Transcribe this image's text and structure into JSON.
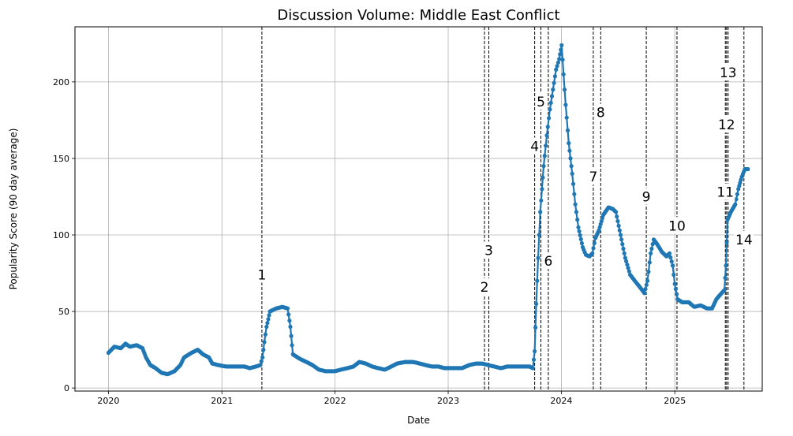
{
  "chart_data": {
    "type": "scatter",
    "title": "Discussion Volume: Middle East Conflict",
    "xlabel": "Date",
    "ylabel": "Popularity Score (90 day average)",
    "xlim": [
      "2019-09-15",
      "2025-10-10"
    ],
    "ylim": [
      -2,
      236
    ],
    "grid": true,
    "series_color": "#1f77b4",
    "x_ticks": [
      {
        "date": "2020-01-01",
        "label": "2020"
      },
      {
        "date": "2021-01-01",
        "label": "2021"
      },
      {
        "date": "2022-01-01",
        "label": "2022"
      },
      {
        "date": "2023-01-01",
        "label": "2023"
      },
      {
        "date": "2024-01-01",
        "label": "2024"
      },
      {
        "date": "2025-01-01",
        "label": "2025"
      }
    ],
    "y_ticks": [
      0,
      50,
      100,
      150,
      200
    ],
    "series": [
      {
        "points": [
          [
            "2020-01-01",
            23
          ],
          [
            "2020-01-20",
            27
          ],
          [
            "2020-02-10",
            26
          ],
          [
            "2020-02-25",
            29
          ],
          [
            "2020-03-10",
            27
          ],
          [
            "2020-04-01",
            28
          ],
          [
            "2020-04-20",
            26
          ],
          [
            "2020-05-01",
            20
          ],
          [
            "2020-05-15",
            15
          ],
          [
            "2020-06-01",
            13
          ],
          [
            "2020-06-20",
            10
          ],
          [
            "2020-07-10",
            9
          ],
          [
            "2020-08-01",
            11
          ],
          [
            "2020-08-20",
            15
          ],
          [
            "2020-09-01",
            20
          ],
          [
            "2020-09-25",
            23
          ],
          [
            "2020-10-15",
            25
          ],
          [
            "2020-11-01",
            22
          ],
          [
            "2020-11-20",
            20
          ],
          [
            "2020-12-01",
            16
          ],
          [
            "2020-12-20",
            15
          ],
          [
            "2021-01-15",
            14
          ],
          [
            "2021-02-15",
            14
          ],
          [
            "2021-03-15",
            14
          ],
          [
            "2021-04-01",
            13
          ],
          [
            "2021-04-20",
            14
          ],
          [
            "2021-05-05",
            15
          ],
          [
            "2021-05-12",
            20
          ],
          [
            "2021-05-18",
            30
          ],
          [
            "2021-05-25",
            40
          ],
          [
            "2021-06-05",
            50
          ],
          [
            "2021-06-25",
            52
          ],
          [
            "2021-07-15",
            53
          ],
          [
            "2021-08-01",
            52
          ],
          [
            "2021-08-10",
            40
          ],
          [
            "2021-08-18",
            22
          ],
          [
            "2021-09-10",
            19
          ],
          [
            "2021-10-01",
            17
          ],
          [
            "2021-10-20",
            15
          ],
          [
            "2021-11-10",
            12
          ],
          [
            "2021-12-01",
            11
          ],
          [
            "2022-01-01",
            11
          ],
          [
            "2022-01-20",
            12
          ],
          [
            "2022-02-10",
            13
          ],
          [
            "2022-03-01",
            14
          ],
          [
            "2022-03-20",
            17
          ],
          [
            "2022-04-10",
            16
          ],
          [
            "2022-05-01",
            14
          ],
          [
            "2022-05-20",
            13
          ],
          [
            "2022-06-10",
            12
          ],
          [
            "2022-07-01",
            14
          ],
          [
            "2022-07-20",
            16
          ],
          [
            "2022-08-15",
            17
          ],
          [
            "2022-09-10",
            17
          ],
          [
            "2022-10-01",
            16
          ],
          [
            "2022-10-20",
            15
          ],
          [
            "2022-11-10",
            14
          ],
          [
            "2022-12-01",
            14
          ],
          [
            "2022-12-20",
            13
          ],
          [
            "2023-01-15",
            13
          ],
          [
            "2023-02-15",
            13
          ],
          [
            "2023-03-10",
            15
          ],
          [
            "2023-04-01",
            16
          ],
          [
            "2023-04-20",
            16
          ],
          [
            "2023-05-10",
            15
          ],
          [
            "2023-05-30",
            14
          ],
          [
            "2023-06-20",
            13
          ],
          [
            "2023-07-10",
            14
          ],
          [
            "2023-08-01",
            14
          ],
          [
            "2023-08-25",
            14
          ],
          [
            "2023-09-20",
            14
          ],
          [
            "2023-10-01",
            13
          ],
          [
            "2023-10-07",
            24
          ],
          [
            "2023-10-12",
            55
          ],
          [
            "2023-10-18",
            85
          ],
          [
            "2023-10-25",
            115
          ],
          [
            "2023-11-05",
            145
          ],
          [
            "2023-11-15",
            165
          ],
          [
            "2023-11-25",
            182
          ],
          [
            "2023-12-05",
            195
          ],
          [
            "2023-12-15",
            208
          ],
          [
            "2023-12-25",
            215
          ],
          [
            "2024-01-02",
            224
          ],
          [
            "2024-01-08",
            205
          ],
          [
            "2024-01-15",
            185
          ],
          [
            "2024-01-25",
            160
          ],
          [
            "2024-02-05",
            140
          ],
          [
            "2024-02-15",
            120
          ],
          [
            "2024-02-25",
            105
          ],
          [
            "2024-03-10",
            92
          ],
          [
            "2024-03-20",
            87
          ],
          [
            "2024-04-01",
            86
          ],
          [
            "2024-04-10",
            88
          ],
          [
            "2024-04-20",
            98
          ],
          [
            "2024-05-01",
            103
          ],
          [
            "2024-05-15",
            113
          ],
          [
            "2024-06-01",
            118
          ],
          [
            "2024-06-15",
            117
          ],
          [
            "2024-06-25",
            115
          ],
          [
            "2024-07-10",
            100
          ],
          [
            "2024-07-25",
            85
          ],
          [
            "2024-08-10",
            74
          ],
          [
            "2024-08-25",
            70
          ],
          [
            "2024-09-10",
            66
          ],
          [
            "2024-09-25",
            62
          ],
          [
            "2024-10-05",
            70
          ],
          [
            "2024-10-15",
            88
          ],
          [
            "2024-10-25",
            97
          ],
          [
            "2024-11-05",
            94
          ],
          [
            "2024-11-20",
            89
          ],
          [
            "2024-12-05",
            86
          ],
          [
            "2024-12-15",
            88
          ],
          [
            "2024-12-25",
            80
          ],
          [
            "2025-01-01",
            68
          ],
          [
            "2025-01-10",
            58
          ],
          [
            "2025-01-25",
            56
          ],
          [
            "2025-02-15",
            56
          ],
          [
            "2025-03-05",
            53
          ],
          [
            "2025-03-25",
            54
          ],
          [
            "2025-04-15",
            52
          ],
          [
            "2025-05-01",
            52
          ],
          [
            "2025-05-15",
            58
          ],
          [
            "2025-06-01",
            62
          ],
          [
            "2025-06-10",
            64
          ],
          [
            "2025-06-15",
            80
          ],
          [
            "2025-06-20",
            110
          ],
          [
            "2025-07-01",
            115
          ],
          [
            "2025-07-15",
            120
          ],
          [
            "2025-07-25",
            130
          ],
          [
            "2025-08-05",
            138
          ],
          [
            "2025-08-15",
            143
          ],
          [
            "2025-08-25",
            143
          ]
        ]
      }
    ],
    "events": [
      {
        "label": "1",
        "date": "2021-05-10",
        "label_y": 74
      },
      {
        "label": "2",
        "date": "2023-04-28",
        "label_y": 66
      },
      {
        "label": "3",
        "date": "2023-05-12",
        "label_y": 90
      },
      {
        "label": "4",
        "date": "2023-10-07",
        "label_y": 158
      },
      {
        "label": "5",
        "date": "2023-10-27",
        "label_y": 187
      },
      {
        "label": "6",
        "date": "2023-11-20",
        "label_y": 83
      },
      {
        "label": "7",
        "date": "2024-04-13",
        "label_y": 138
      },
      {
        "label": "8",
        "date": "2024-05-07",
        "label_y": 180
      },
      {
        "label": "9",
        "date": "2024-10-01",
        "label_y": 125
      },
      {
        "label": "10",
        "date": "2025-01-08",
        "label_y": 106
      },
      {
        "label": "11",
        "date": "2025-06-13",
        "label_y": 128
      },
      {
        "label": "12",
        "date": "2025-06-17",
        "label_y": 172
      },
      {
        "label": "13",
        "date": "2025-06-22",
        "label_y": 206
      },
      {
        "label": "14",
        "date": "2025-08-12",
        "label_y": 97
      }
    ]
  }
}
